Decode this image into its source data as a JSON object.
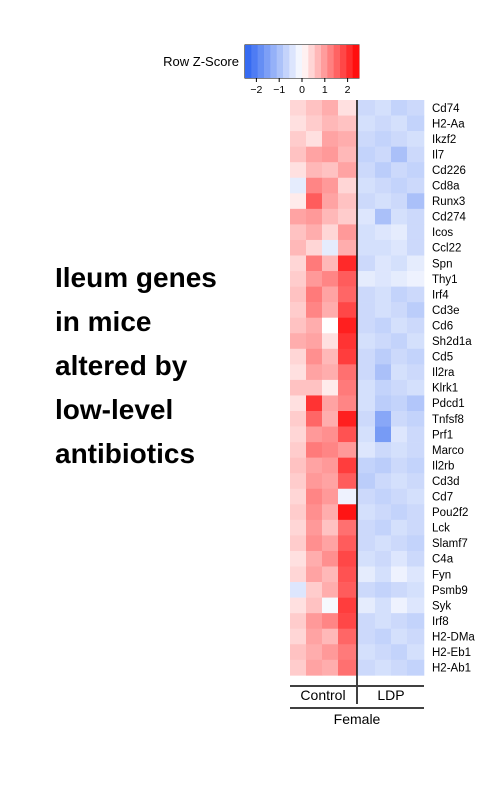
{
  "headline": [
    "Ileum genes",
    "in mice",
    "altered by",
    "low-level",
    "antibiotics"
  ],
  "chart_data": {
    "type": "heatmap",
    "title": "",
    "scale": {
      "title": "Row Z-Score",
      "min": -2.5,
      "max": 2.5,
      "ticks": [
        -2,
        -1,
        0,
        1,
        2
      ],
      "tick_labels": [
        "−2",
        "−1",
        "0",
        "1",
        "2"
      ],
      "low_color": "#2a62f0",
      "mid_color": "#ffffff",
      "high_color": "#ff0000"
    },
    "rows": [
      "Cd74",
      "H2-Aa",
      "Ikzf2",
      "Il7",
      "Cd226",
      "Cd8a",
      "Runx3",
      "Cd274",
      "Icos",
      "Ccl22",
      "Spn",
      "Thy1",
      "Irf4",
      "Cd3e",
      "Cd6",
      "Sh2d1a",
      "Cd5",
      "Il2ra",
      "Klrk1",
      "Pdcd1",
      "Tnfsf8",
      "Prf1",
      "Marco",
      "Il2rb",
      "Cd3d",
      "Cd7",
      "Pou2f2",
      "Lck",
      "Slamf7",
      "C4a",
      "Fyn",
      "Psmb9",
      "Syk",
      "Irf8",
      "H2-DMa",
      "H2-Eb1",
      "H2-Ab1"
    ],
    "groups": [
      {
        "label": "Control",
        "columns": 4
      },
      {
        "label": "LDP",
        "columns": 4
      }
    ],
    "super_group": "Female",
    "values": [
      [
        0.4,
        0.6,
        0.8,
        0.3,
        -0.6,
        -0.5,
        -0.7,
        -0.6
      ],
      [
        0.3,
        0.5,
        0.7,
        0.6,
        -0.5,
        -0.6,
        -0.5,
        -0.7
      ],
      [
        0.5,
        0.3,
        0.9,
        0.8,
        -0.6,
        -0.7,
        -0.6,
        -0.5
      ],
      [
        0.6,
        0.9,
        1.0,
        0.7,
        -0.7,
        -0.6,
        -1.0,
        -0.6
      ],
      [
        0.3,
        0.7,
        0.6,
        0.9,
        -0.6,
        -0.8,
        -0.6,
        -0.7
      ],
      [
        -0.3,
        1.2,
        1.0,
        0.4,
        -0.5,
        -0.6,
        -0.7,
        -0.6
      ],
      [
        0.2,
        1.6,
        0.9,
        0.6,
        -0.6,
        -0.5,
        -0.6,
        -1.0
      ],
      [
        0.9,
        1.0,
        0.7,
        0.5,
        -0.4,
        -1.0,
        -0.5,
        -0.6
      ],
      [
        0.6,
        0.8,
        0.4,
        1.0,
        -0.5,
        -0.4,
        -0.3,
        -0.6
      ],
      [
        0.7,
        0.4,
        -0.3,
        0.8,
        -0.5,
        -0.5,
        -0.4,
        -0.6
      ],
      [
        0.4,
        1.3,
        0.7,
        2.1,
        -0.6,
        -0.4,
        -0.5,
        -0.3
      ],
      [
        0.5,
        1.0,
        1.2,
        1.6,
        -0.3,
        -0.4,
        -0.3,
        -0.2
      ],
      [
        0.6,
        1.3,
        0.9,
        1.5,
        -0.6,
        -0.5,
        -0.7,
        -0.6
      ],
      [
        0.5,
        1.2,
        0.8,
        1.8,
        -0.6,
        -0.5,
        -0.6,
        -0.8
      ],
      [
        0.6,
        0.8,
        0.0,
        2.2,
        -0.6,
        -0.7,
        -0.5,
        -0.6
      ],
      [
        0.8,
        0.9,
        0.3,
        2.0,
        -0.5,
        -0.6,
        -0.7,
        -0.5
      ],
      [
        0.4,
        1.1,
        0.7,
        1.9,
        -0.6,
        -0.8,
        -0.6,
        -0.7
      ],
      [
        0.3,
        0.9,
        0.8,
        1.4,
        -0.6,
        -1.0,
        -0.5,
        -0.6
      ],
      [
        0.6,
        0.6,
        0.2,
        1.3,
        -0.5,
        -0.7,
        -0.6,
        -0.5
      ],
      [
        0.3,
        2.0,
        0.9,
        1.2,
        -0.5,
        -0.8,
        -0.7,
        -0.9
      ],
      [
        0.5,
        1.5,
        0.8,
        2.2,
        -0.6,
        -1.4,
        -0.6,
        -0.7
      ],
      [
        0.4,
        1.0,
        1.1,
        1.7,
        -0.5,
        -1.6,
        -0.4,
        -0.6
      ],
      [
        0.5,
        1.3,
        1.2,
        1.0,
        -0.4,
        -0.6,
        -0.5,
        -0.6
      ],
      [
        0.6,
        0.9,
        1.0,
        1.9,
        -0.7,
        -0.8,
        -0.6,
        -0.7
      ],
      [
        0.5,
        1.0,
        0.9,
        1.6,
        -0.8,
        -0.6,
        -0.5,
        -0.6
      ],
      [
        0.4,
        1.2,
        1.0,
        -0.2,
        -0.6,
        -0.7,
        -0.6,
        -0.5
      ],
      [
        0.5,
        1.1,
        0.8,
        2.3,
        -0.5,
        -0.6,
        -0.7,
        -0.6
      ],
      [
        0.4,
        1.0,
        0.6,
        1.4,
        -0.6,
        -0.7,
        -0.5,
        -0.6
      ],
      [
        0.5,
        1.1,
        0.9,
        1.6,
        -0.6,
        -0.5,
        -0.6,
        -0.7
      ],
      [
        0.3,
        0.8,
        1.1,
        1.8,
        -0.5,
        -0.6,
        -0.4,
        -0.6
      ],
      [
        0.4,
        0.9,
        0.7,
        1.7,
        -0.3,
        -0.5,
        -0.2,
        -0.4
      ],
      [
        -0.4,
        0.5,
        0.8,
        1.6,
        -0.6,
        -0.7,
        -0.6,
        -0.5
      ],
      [
        0.3,
        0.6,
        -0.1,
        1.9,
        -0.3,
        -0.5,
        -0.2,
        -0.4
      ],
      [
        0.5,
        1.0,
        1.2,
        1.8,
        -0.6,
        -0.5,
        -0.6,
        -0.7
      ],
      [
        0.4,
        0.9,
        0.7,
        1.5,
        -0.6,
        -0.7,
        -0.5,
        -0.6
      ],
      [
        0.6,
        0.8,
        1.0,
        1.3,
        -0.5,
        -0.6,
        -0.7,
        -0.5
      ],
      [
        0.5,
        0.9,
        0.8,
        1.4,
        -0.6,
        -0.5,
        -0.6,
        -0.7
      ]
    ]
  }
}
